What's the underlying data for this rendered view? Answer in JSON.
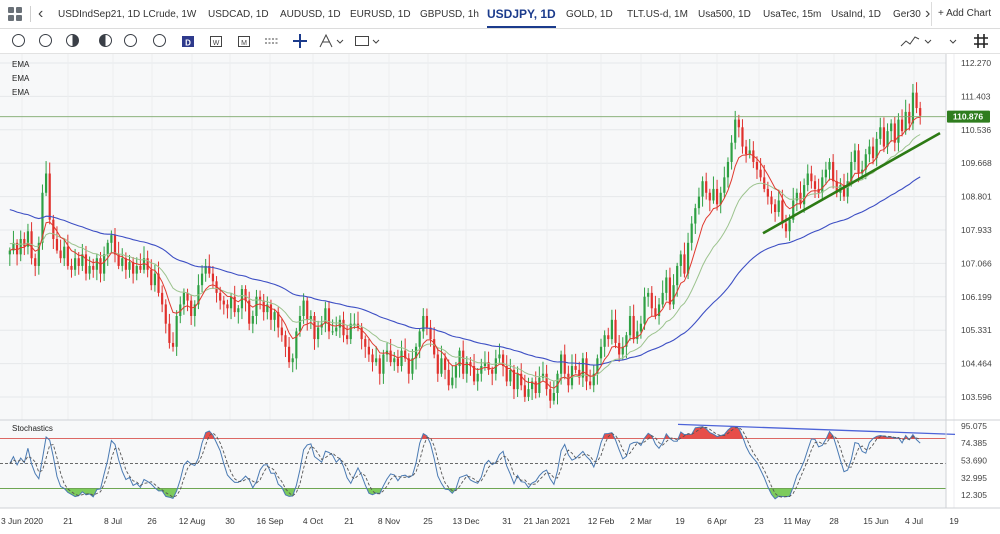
{
  "tabs": [
    "USDIndSep21, 1D",
    "LCrude, 1W",
    "USDCAD, 1D",
    "AUDUSD, 1D",
    "EURUSD, 1D",
    "GBPUSD, 1h",
    "USDJPY, 1D",
    "GOLD, 1D",
    "TLT.US-d, 1M",
    "Usa500, 1D",
    "UsaTec, 15m",
    "UsaInd, 1D",
    "Ger30"
  ],
  "active_tab": "USDJPY, 1D",
  "add_chart_label": "+ Add Chart",
  "indicators": [
    "EMA",
    "EMA",
    "EMA"
  ],
  "stoch_label": "Stochastics",
  "colors": {
    "ema_fast": "#e0392e",
    "ema_mid": "#9cc38e",
    "ema_slow": "#3d4fc4",
    "up": "#2ea043",
    "down": "#e0302c",
    "trendline": "#2c7a14",
    "divergence": "#4c63d8",
    "last_price_bg": "#2f7d1e",
    "stoch_upper_fill": "#e4302a",
    "stoch_lower_fill": "#67c341"
  },
  "chart_data": {
    "type": "candlestick",
    "title": "USDJPY, 1D",
    "y_ticks": [
      112.27,
      111.403,
      110.536,
      109.668,
      108.801,
      107.933,
      107.066,
      106.199,
      105.331,
      104.464,
      103.596
    ],
    "last_price": "110.876",
    "ylim": [
      103.2,
      112.5
    ],
    "x_ticks": [
      "3 Jun 2020",
      "21",
      "8 Jul",
      "26",
      "12 Aug",
      "30",
      "16 Sep",
      "4 Oct",
      "21",
      "8 Nov",
      "25",
      "13 Dec",
      "31",
      "21 Jan 2021",
      "12 Feb",
      "2 Mar",
      "19",
      "6 Apr",
      "23",
      "11 May",
      "28",
      "15 Jun",
      "4 Jul",
      "19"
    ],
    "close_path": [
      107.4,
      107.6,
      107.3,
      107.7,
      107.5,
      107.9,
      107.2,
      107.0,
      107.6,
      108.9,
      109.4,
      108.2,
      107.7,
      107.4,
      107.2,
      107.5,
      107.0,
      106.9,
      107.2,
      107.0,
      107.3,
      106.8,
      107.0,
      106.9,
      107.2,
      106.8,
      107.3,
      107.6,
      107.8,
      107.3,
      107.0,
      107.2,
      106.9,
      107.1,
      106.8,
      107.0,
      106.9,
      107.2,
      106.9,
      106.5,
      106.8,
      106.3,
      106.0,
      105.5,
      105.0,
      104.9,
      105.7,
      106.0,
      106.3,
      106.1,
      105.7,
      106.0,
      106.5,
      106.8,
      107.0,
      106.8,
      106.6,
      106.3,
      106.1,
      106.0,
      105.9,
      106.2,
      105.8,
      105.9,
      106.4,
      106.1,
      105.5,
      105.7,
      106.2,
      106.1,
      105.8,
      106.0,
      105.6,
      105.8,
      105.4,
      105.2,
      104.9,
      104.5,
      104.6,
      105.3,
      105.7,
      106.1,
      105.6,
      105.7,
      105.1,
      105.4,
      105.5,
      105.9,
      105.3,
      105.3,
      105.4,
      105.6,
      105.2,
      105.1,
      105.5,
      105.5,
      105.4,
      105.1,
      104.9,
      104.7,
      104.5,
      104.6,
      104.2,
      104.7,
      104.8,
      104.5,
      104.6,
      104.4,
      104.8,
      104.6,
      104.2,
      104.6,
      104.9,
      105.3,
      105.7,
      105.4,
      105.1,
      104.7,
      104.2,
      104.6,
      104.3,
      103.9,
      104.1,
      104.4,
      104.8,
      104.2,
      104.5,
      104.4,
      104.0,
      104.2,
      104.4,
      104.5,
      104.3,
      104.2,
      104.6,
      104.7,
      104.4,
      104.0,
      104.3,
      103.8,
      104.2,
      103.9,
      103.6,
      103.8,
      104.0,
      103.7,
      104.1,
      104.2,
      103.8,
      103.5,
      103.7,
      104.2,
      104.7,
      104.2,
      103.9,
      104.4,
      104.3,
      104.1,
      104.6,
      104.0,
      103.9,
      104.2,
      104.6,
      104.9,
      105.2,
      105.1,
      105.6,
      105.0,
      104.7,
      104.9,
      105.2,
      105.7,
      105.1,
      105.3,
      105.5,
      106.2,
      106.3,
      105.9,
      105.7,
      106.0,
      106.3,
      106.7,
      106.0,
      106.5,
      107.0,
      107.3,
      106.8,
      107.6,
      108.1,
      108.5,
      108.8,
      109.2,
      108.9,
      108.7,
      109.0,
      108.6,
      108.9,
      109.3,
      109.7,
      110.2,
      110.8,
      110.6,
      110.1,
      109.9,
      110.0,
      109.7,
      109.5,
      109.3,
      109.0,
      108.8,
      108.6,
      108.4,
      108.7,
      108.1,
      107.9,
      108.2,
      108.7,
      108.9,
      108.6,
      109.1,
      109.4,
      109.2,
      109.0,
      108.9,
      109.3,
      109.5,
      109.7,
      109.2,
      108.9,
      109.1,
      108.8,
      109.2,
      109.7,
      110.0,
      109.4,
      109.5,
      109.9,
      110.1,
      109.8,
      110.3,
      110.6,
      110.1,
      110.5,
      110.7,
      110.2,
      110.8,
      110.5,
      111.0,
      110.7,
      111.5,
      111.1,
      110.9
    ]
  }
}
